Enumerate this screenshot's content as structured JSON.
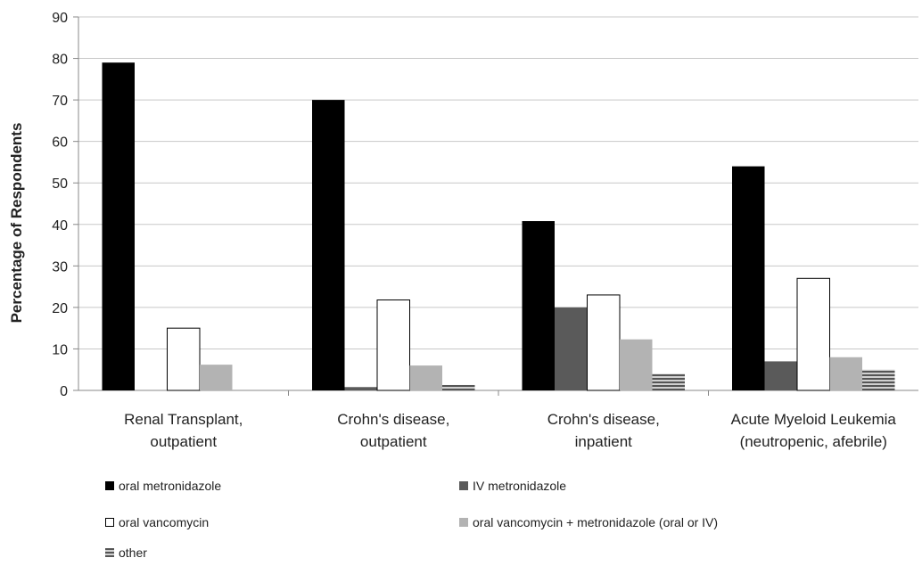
{
  "chart_data": {
    "type": "bar",
    "title": "",
    "xlabel": "",
    "ylabel": "Percentage of Respondents",
    "ylim": [
      0,
      90
    ],
    "yticks": [
      0,
      10,
      20,
      30,
      40,
      50,
      60,
      70,
      80,
      90
    ],
    "categories": [
      [
        "Renal Transplant,",
        "outpatient"
      ],
      [
        "Crohn's disease,",
        "outpatient"
      ],
      [
        "Crohn's disease,",
        "inpatient"
      ],
      [
        "Acute Myeloid Leukemia",
        "(neutropenic, afebrile)"
      ]
    ],
    "series": [
      {
        "name": "oral metronidazole",
        "color": "#000000",
        "pattern": "solid",
        "values": [
          79,
          70,
          40.8,
          54
        ]
      },
      {
        "name": "IV metronidazole",
        "color": "#5a5a5a",
        "pattern": "solid",
        "values": [
          0,
          0.8,
          20,
          7
        ]
      },
      {
        "name": "oral vancomycin",
        "color": "#ffffff",
        "pattern": "outline",
        "values": [
          15,
          21.8,
          23,
          27
        ]
      },
      {
        "name": "oral vancomycin + metronidazole (oral or IV)",
        "color": "#b3b3b3",
        "pattern": "solid",
        "values": [
          6.2,
          6,
          12.3,
          8
        ]
      },
      {
        "name": "other",
        "color": "#8c8c8c",
        "pattern": "striped",
        "values": [
          0,
          1.3,
          4,
          5
        ]
      }
    ],
    "grid": true,
    "legend_position": "bottom"
  }
}
